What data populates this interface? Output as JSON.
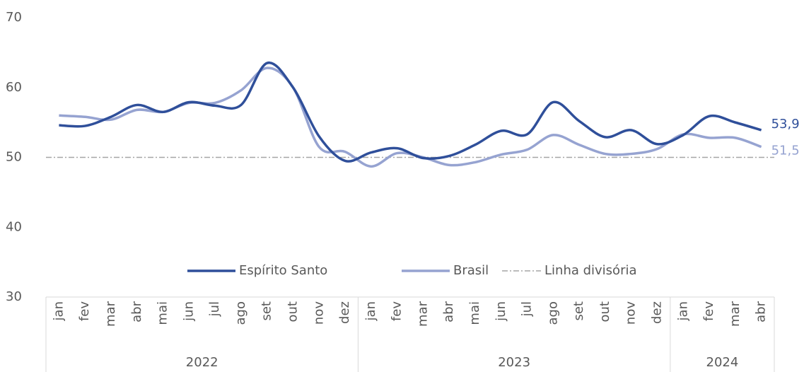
{
  "chart_data": {
    "type": "line",
    "categories": [
      "jan",
      "fev",
      "mar",
      "abr",
      "mai",
      "jun",
      "jul",
      "ago",
      "set",
      "out",
      "nov",
      "dez",
      "jan",
      "fev",
      "mar",
      "abr",
      "mai",
      "jun",
      "jul",
      "ago",
      "set",
      "out",
      "nov",
      "dez",
      "jan",
      "fev",
      "mar",
      "abr"
    ],
    "years": [
      "2022",
      "2022",
      "2022",
      "2022",
      "2022",
      "2022",
      "2022",
      "2022",
      "2022",
      "2022",
      "2022",
      "2022",
      "2023",
      "2023",
      "2023",
      "2023",
      "2023",
      "2023",
      "2023",
      "2023",
      "2023",
      "2023",
      "2023",
      "2023",
      "2024",
      "2024",
      "2024",
      "2024"
    ],
    "series": [
      {
        "name": "Espírito Santo",
        "color": "#2f4f9a",
        "values": [
          54.6,
          54.5,
          55.8,
          57.5,
          56.5,
          57.9,
          57.4,
          57.5,
          63.5,
          60,
          53,
          49.5,
          50.7,
          51.3,
          49.9,
          50.2,
          51.8,
          53.8,
          53.3,
          57.9,
          55.2,
          52.9,
          53.9,
          51.9,
          53.2,
          55.9,
          55,
          53.9
        ],
        "value_labels": [
          null,
          null,
          null,
          null,
          null,
          null,
          null,
          null,
          null,
          null,
          null,
          null,
          null,
          null,
          null,
          null,
          null,
          null,
          null,
          null,
          null,
          null,
          null,
          null,
          null,
          null,
          null,
          "53,9"
        ]
      },
      {
        "name": "Brasil",
        "color": "#96a3d1",
        "values": [
          56,
          55.8,
          55.4,
          56.8,
          56.5,
          57.8,
          57.8,
          59.6,
          62.8,
          60,
          51.5,
          50.8,
          48.7,
          50.6,
          50,
          48.9,
          49.3,
          50.4,
          51.1,
          53.2,
          51.8,
          50.5,
          50.5,
          51.2,
          53.3,
          52.8,
          52.8,
          51.5
        ],
        "value_labels": [
          null,
          null,
          null,
          null,
          null,
          null,
          null,
          null,
          null,
          null,
          null,
          null,
          null,
          null,
          null,
          null,
          null,
          null,
          null,
          null,
          null,
          null,
          null,
          null,
          null,
          null,
          null,
          "51,5"
        ]
      }
    ],
    "reference_line": {
      "name": "Linha divisória",
      "value": 50,
      "color": "#a6a6a6"
    },
    "ylim": [
      30,
      70
    ],
    "yticks": [
      30,
      40,
      50,
      60,
      70
    ],
    "grid": false,
    "smooth": true
  }
}
